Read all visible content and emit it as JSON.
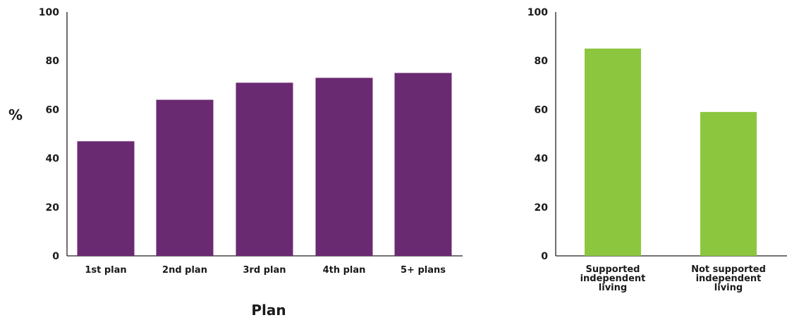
{
  "chart_data": [
    {
      "type": "bar",
      "categories": [
        "1st plan",
        "2nd plan",
        "3rd plan",
        "4th plan",
        "5+ plans"
      ],
      "values": [
        47,
        64,
        71,
        73,
        75
      ],
      "xlabel": "Plan",
      "ylabel": "%",
      "ylim": [
        0,
        100
      ],
      "yticks": [
        0,
        20,
        40,
        60,
        80,
        100
      ],
      "grid": false,
      "colors": {
        "bar": "#6a2a72"
      }
    },
    {
      "type": "bar",
      "categories": [
        "Supported independent living",
        "Not supported independent living"
      ],
      "values": [
        85,
        59
      ],
      "xlabel": "",
      "ylabel": "",
      "ylim": [
        0,
        100
      ],
      "yticks": [
        0,
        20,
        40,
        60,
        80,
        100
      ],
      "grid": false,
      "colors": {
        "bar": "#8cc63f"
      }
    }
  ]
}
